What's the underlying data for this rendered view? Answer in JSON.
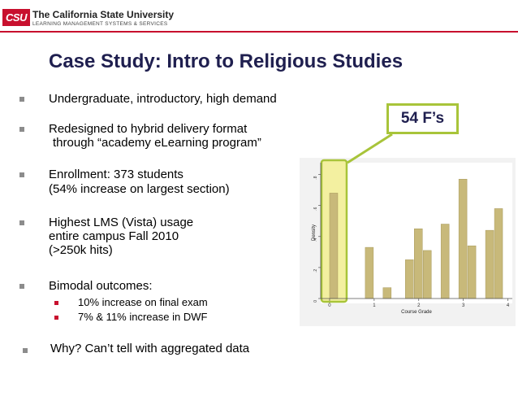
{
  "header": {
    "logo_text": "CSU",
    "university": "The California State University",
    "subtitle": "LEARNING MANAGEMENT SYSTEMS & SERVICES"
  },
  "slide": {
    "title": "Case Study: Intro to Religious Studies",
    "bullets": [
      {
        "lines": [
          "Undergraduate, introductory, high demand"
        ]
      },
      {
        "lines": [
          "Redesigned to hybrid delivery format",
          "through “academy eLearning program”"
        ]
      },
      {
        "lines": [
          "Enrollment: 373 students",
          "(54% increase on largest section)"
        ]
      },
      {
        "lines": [
          "Highest LMS (Vista) usage",
          "entire campus Fall 2010",
          "(>250k hits)"
        ]
      },
      {
        "lines": [
          "Bimodal outcomes:"
        ]
      }
    ],
    "sub_bullets": [
      "10% increase on final exam",
      "7% & 11% increase in DWF"
    ],
    "last_bullet": "Why?  Can’t tell with aggregated data",
    "callout": "54 F’s"
  },
  "colors": {
    "brand_red": "#c8102e",
    "bar_fill": "#c8b97a",
    "highlight": "#f3f0a0",
    "callout_border": "#a8c43a"
  },
  "chart_data": {
    "type": "bar",
    "xlabel": "Course Grade",
    "ylabel": "Density",
    "xlim": [
      -0.2,
      4.1
    ],
    "ylim": [
      0,
      0.85
    ],
    "x_ticks": [
      "0",
      "1",
      "2",
      "3",
      "4"
    ],
    "y_ticks": [
      "0",
      ".2",
      ".4",
      ".6",
      ".8"
    ],
    "bins": [
      {
        "x": 0.0,
        "width": 0.2,
        "value": 0.68
      },
      {
        "x": 0.8,
        "width": 0.2,
        "value": 0.33
      },
      {
        "x": 1.2,
        "width": 0.2,
        "value": 0.07
      },
      {
        "x": 1.7,
        "width": 0.2,
        "value": 0.25
      },
      {
        "x": 1.9,
        "width": 0.2,
        "value": 0.45
      },
      {
        "x": 2.1,
        "width": 0.2,
        "value": 0.31
      },
      {
        "x": 2.5,
        "width": 0.2,
        "value": 0.48
      },
      {
        "x": 2.9,
        "width": 0.2,
        "value": 0.77
      },
      {
        "x": 3.1,
        "width": 0.2,
        "value": 0.34
      },
      {
        "x": 3.5,
        "width": 0.2,
        "value": 0.44
      },
      {
        "x": 3.7,
        "width": 0.2,
        "value": 0.58
      }
    ],
    "highlighted_bin": 0
  }
}
